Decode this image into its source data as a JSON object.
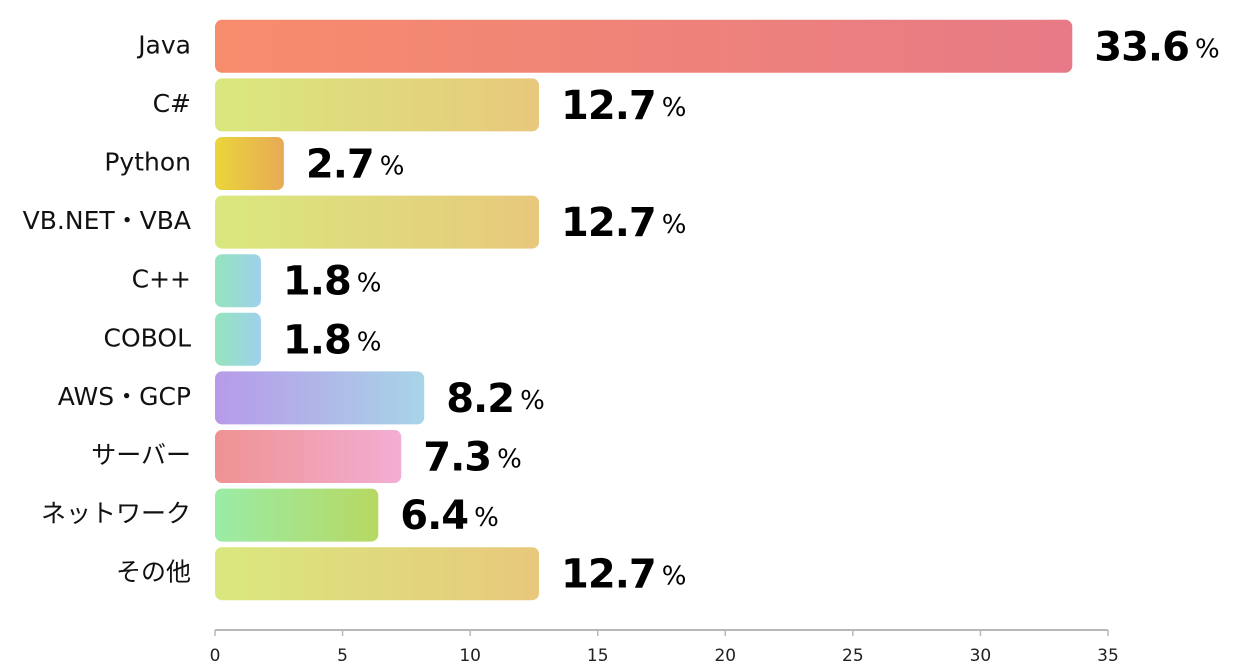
{
  "chart_data": {
    "type": "bar",
    "orientation": "horizontal",
    "categories": [
      "Java",
      "C#",
      "Python",
      "VB.NET・VBA",
      "C++",
      "COBOL",
      "AWS・GCP",
      "サーバー",
      "ネットワーク",
      "その他"
    ],
    "values": [
      33.6,
      12.7,
      2.7,
      12.7,
      1.8,
      1.8,
      8.2,
      7.3,
      6.4,
      12.7
    ],
    "value_labels": [
      "33.6%",
      "12.7%",
      "2.7%",
      "12.7%",
      "1.8%",
      "1.8%",
      "8.2%",
      "7.3%",
      "6.4%",
      "12.7%"
    ],
    "colors": [
      [
        "#f78c6c",
        "#e77a86"
      ],
      [
        "#d9e87e",
        "#e8c87c"
      ],
      [
        "#ebd53a",
        "#e8aa56"
      ],
      [
        "#d9e87e",
        "#e8c87c"
      ],
      [
        "#95e4bd",
        "#9dd1ec"
      ],
      [
        "#95e4bd",
        "#9dd1ec"
      ],
      [
        "#b79ae9",
        "#a8d4e8"
      ],
      [
        "#ef9293",
        "#f2aed3"
      ],
      [
        "#9aeca7",
        "#b7d862"
      ],
      [
        "#d9e87e",
        "#e8c87c"
      ]
    ],
    "xlim": [
      0,
      35
    ],
    "xticks": [
      0,
      5,
      10,
      15,
      20,
      25,
      30,
      35
    ],
    "grid": false
  }
}
